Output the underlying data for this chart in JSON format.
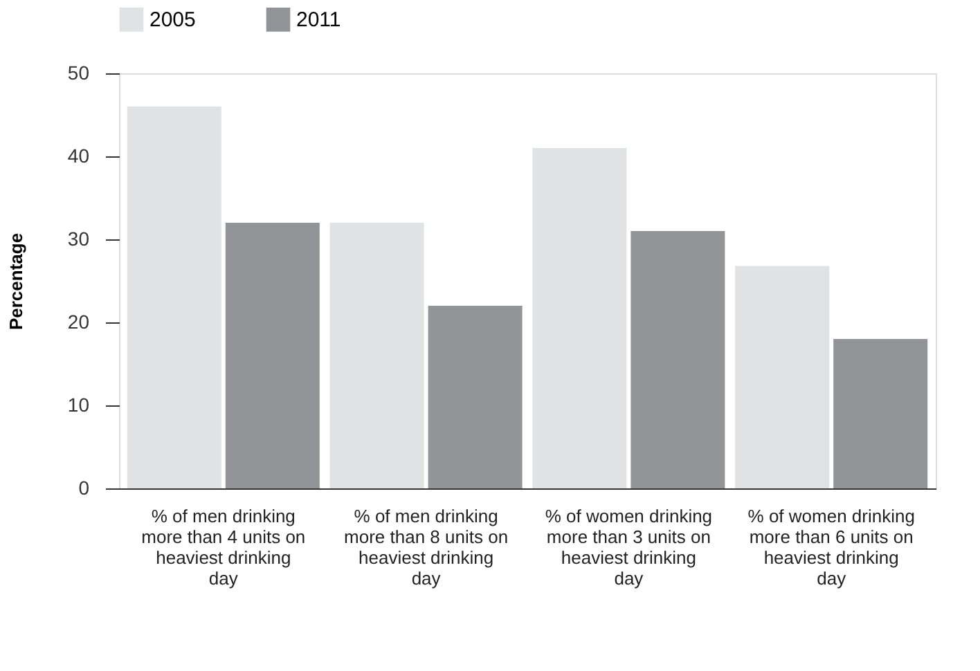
{
  "chart_data": {
    "type": "bar",
    "ylabel": "Percentage",
    "categories": [
      "% of men drinking more than 4 units on heaviest drinking day",
      "% of men drinking more than 8 units on heaviest drinking day",
      "% of women drinking more than 3 units on heaviest drinking day",
      "% of women drinking more than 6 units on heaviest drinking day"
    ],
    "series": [
      {
        "name": "2005",
        "color": "#e1e2e3",
        "values": [
          46,
          32,
          41,
          26.8
        ]
      },
      {
        "name": "2011",
        "color": "#939497",
        "values": [
          32,
          22,
          31,
          18
        ]
      }
    ],
    "ylim": [
      0,
      50
    ],
    "yticks": [
      0,
      10,
      20,
      30,
      40,
      50
    ],
    "grid": false,
    "legend": "top left"
  }
}
